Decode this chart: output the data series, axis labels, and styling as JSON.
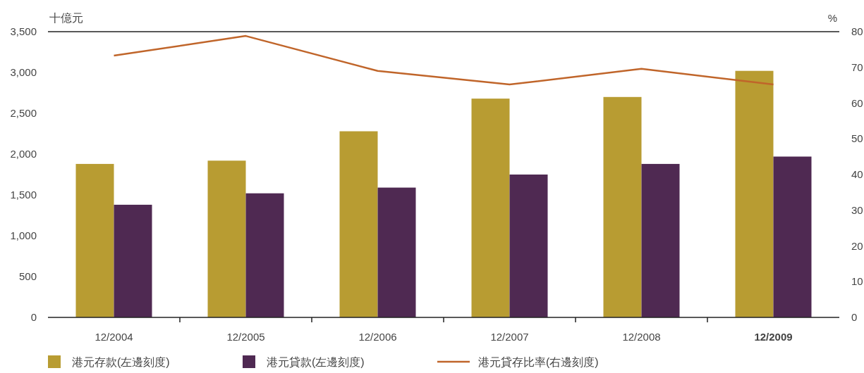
{
  "chart_data": {
    "type": "bar",
    "categories": [
      "12/2004",
      "12/2005",
      "12/2006",
      "12/2007",
      "12/2008",
      "12/2009"
    ],
    "ylabel": "十億元",
    "y2label": "%",
    "ylim": [
      0,
      3500
    ],
    "yticks": [
      {
        "value": 0,
        "label": "0"
      },
      {
        "value": 500,
        "label": "500"
      },
      {
        "value": 1000,
        "label": "1,000"
      },
      {
        "value": 1500,
        "label": "1,500"
      },
      {
        "value": 2000,
        "label": "2,000"
      },
      {
        "value": 2500,
        "label": "2,500"
      },
      {
        "value": 3000,
        "label": "3,000"
      },
      {
        "value": 3500,
        "label": "3,500"
      }
    ],
    "y2lim": [
      0,
      80
    ],
    "y2ticks": [
      0,
      10,
      20,
      30,
      40,
      50,
      60,
      70,
      80
    ],
    "legend": "bottom",
    "grid": false,
    "series": [
      {
        "name": "港元存款(左邊刻度)",
        "color": "#b89c32",
        "values": [
          1880,
          1920,
          2280,
          2680,
          2700,
          3020
        ]
      },
      {
        "name": "港元貸款(左邊刻度)",
        "color": "#4f2952",
        "values": [
          1380,
          1520,
          1590,
          1750,
          1880,
          1970
        ]
      },
      {
        "name": "港元貸存比率(右邊刻度)",
        "type": "line",
        "axis": "y2",
        "color": "#c0652a",
        "values": [
          73.3,
          78.8,
          69.0,
          65.2,
          69.6,
          65.2
        ]
      }
    ]
  }
}
